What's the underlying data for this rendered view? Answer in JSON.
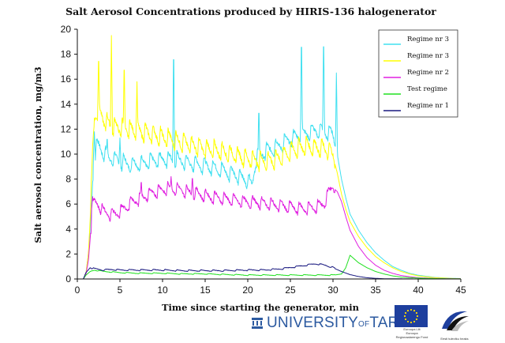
{
  "chart_data": {
    "type": "line",
    "title": "Salt Aerosol Concentrations produced by HIRIS-136 halogenerator",
    "xlabel": "Time since starting the generator, min",
    "ylabel": "Salt aerosol concentration, mg/m3",
    "xlim": [
      0,
      45
    ],
    "ylim": [
      0,
      20
    ],
    "xticks": [
      0,
      5,
      10,
      15,
      20,
      25,
      30,
      35,
      40,
      45
    ],
    "yticks": [
      0,
      2,
      4,
      6,
      8,
      10,
      12,
      14,
      16,
      18,
      20
    ],
    "grid": false,
    "legend_position": "top-right",
    "series": [
      {
        "name": "Regime nr 3",
        "color": "#40e0f0",
        "x": [
          0,
          0.7,
          1.0,
          1.3,
          1.6,
          1.8,
          2.0,
          2.3,
          2.6,
          3.0,
          3.5,
          4,
          5,
          6,
          7,
          8,
          9,
          10,
          11,
          12,
          13,
          14,
          15,
          16,
          17,
          18,
          19,
          20,
          20.5,
          21,
          22,
          23,
          24,
          25,
          26,
          27,
          28,
          29,
          30,
          30.5,
          31,
          31.5,
          32,
          33,
          34,
          35,
          36,
          37,
          38,
          39,
          40,
          42,
          44,
          45
        ],
        "y": [
          0,
          0,
          0.4,
          2.0,
          5.0,
          7.8,
          9.5,
          10.5,
          10.4,
          10.0,
          9.6,
          9.5,
          9.2,
          9.0,
          9.0,
          9.1,
          9.3,
          9.4,
          9.4,
          9.3,
          9.1,
          9.0,
          8.9,
          8.7,
          8.5,
          8.3,
          8.0,
          7.7,
          7.4,
          9.5,
          10.0,
          10.3,
          10.6,
          11.0,
          11.3,
          11.5,
          11.7,
          11.6,
          11.4,
          10.0,
          8.0,
          6.5,
          5.2,
          3.9,
          2.9,
          2.1,
          1.5,
          1.0,
          0.7,
          0.45,
          0.3,
          0.12,
          0.05,
          0.03
        ],
        "spikes": [
          [
            2.0,
            11.8
          ],
          [
            3.5,
            11.5
          ],
          [
            5.0,
            11.3
          ],
          [
            11.3,
            19.2
          ],
          [
            21.3,
            14.0
          ],
          [
            26.3,
            20.0
          ],
          [
            28.9,
            20.0
          ],
          [
            30.4,
            16.5
          ]
        ]
      },
      {
        "name": "Regime nr 3",
        "color": "#ffff00",
        "x": [
          0,
          0.7,
          1.0,
          1.3,
          1.6,
          1.8,
          2.0,
          2.3,
          2.6,
          3.0,
          3.5,
          4,
          5,
          6,
          7,
          8,
          9,
          10,
          11,
          12,
          13,
          14,
          15,
          16,
          17,
          18,
          19,
          20,
          21,
          22,
          23,
          24,
          25,
          26,
          27,
          28,
          29,
          30,
          30.5,
          31,
          31.5,
          32,
          33,
          34,
          35,
          36,
          37,
          38,
          39,
          40,
          42,
          44,
          45
        ],
        "y": [
          0,
          0,
          0.4,
          2.0,
          6.0,
          10.0,
          12.5,
          13.2,
          13.0,
          12.6,
          12.3,
          12.0,
          11.9,
          11.8,
          11.6,
          11.5,
          11.3,
          11.1,
          11.0,
          10.8,
          10.6,
          10.4,
          10.2,
          10.1,
          10.0,
          9.8,
          9.6,
          9.4,
          9.3,
          9.2,
          9.3,
          9.6,
          10.0,
          10.3,
          10.4,
          10.3,
          10.2,
          9.8,
          8.5,
          6.8,
          5.6,
          4.6,
          3.4,
          2.5,
          1.8,
          1.3,
          0.9,
          0.6,
          0.4,
          0.25,
          0.1,
          0.04,
          0.02
        ],
        "spikes": [
          [
            2.5,
            18.3
          ],
          [
            4.0,
            19.5
          ],
          [
            5.5,
            17.7
          ],
          [
            7.0,
            15.8
          ]
        ]
      },
      {
        "name": "Regime nr 2",
        "color": "#e020e0",
        "x": [
          0,
          0.7,
          1.0,
          1.3,
          1.6,
          1.8,
          2.0,
          2.5,
          3.0,
          4,
          5,
          6,
          7,
          8,
          9,
          10,
          11,
          12,
          13,
          14,
          15,
          16,
          17,
          18,
          19,
          20,
          21,
          22,
          23,
          24,
          25,
          26,
          27,
          28,
          29,
          29.5,
          30,
          30.5,
          31,
          31.5,
          32,
          33,
          34,
          35,
          36,
          37,
          38,
          39,
          40,
          42,
          44,
          45
        ],
        "y": [
          0,
          0,
          0.3,
          1.5,
          4.0,
          5.6,
          6.0,
          5.8,
          5.3,
          5.0,
          5.2,
          5.8,
          6.2,
          6.5,
          6.8,
          7.0,
          7.1,
          7.0,
          6.8,
          6.7,
          6.5,
          6.4,
          6.3,
          6.2,
          6.1,
          6.0,
          6.0,
          5.9,
          5.8,
          5.7,
          5.6,
          5.5,
          5.5,
          5.6,
          5.9,
          6.8,
          7.3,
          7.0,
          6.2,
          5.0,
          3.9,
          2.6,
          1.7,
          1.1,
          0.7,
          0.45,
          0.28,
          0.18,
          0.1,
          0.04,
          0.02,
          0.01
        ],
        "spikes": [
          [
            1.8,
            6.6
          ],
          [
            7.5,
            8.0
          ],
          [
            11.0,
            8.2
          ],
          [
            13.5,
            8.3
          ]
        ]
      },
      {
        "name": "Test regime",
        "color": "#20e020",
        "x": [
          0,
          0.7,
          1.0,
          1.5,
          2.0,
          3,
          5,
          7,
          10,
          12,
          15,
          17,
          20,
          22,
          25,
          28,
          30,
          31,
          31.5,
          32,
          32.5,
          33,
          34,
          35,
          36,
          37,
          38,
          40,
          42,
          45
        ],
        "y": [
          0,
          0,
          0.3,
          0.6,
          0.7,
          0.6,
          0.5,
          0.45,
          0.45,
          0.4,
          0.4,
          0.35,
          0.3,
          0.3,
          0.3,
          0.3,
          0.3,
          0.4,
          0.9,
          1.9,
          1.6,
          1.3,
          0.9,
          0.6,
          0.4,
          0.25,
          0.15,
          0.07,
          0.03,
          0.01
        ],
        "spikes": []
      },
      {
        "name": "Regime nr 1",
        "color": "#1a1a80",
        "x": [
          0,
          0.7,
          1.0,
          1.5,
          2.0,
          3,
          4,
          5,
          7,
          10,
          12,
          15,
          17,
          20,
          22,
          24,
          25,
          26,
          27,
          28,
          29,
          30,
          31,
          32,
          33,
          34,
          35,
          36,
          38,
          40,
          45
        ],
        "y": [
          0,
          0,
          0.5,
          0.9,
          0.8,
          0.7,
          0.75,
          0.7,
          0.7,
          0.7,
          0.65,
          0.65,
          0.65,
          0.7,
          0.7,
          0.8,
          0.9,
          1.0,
          1.1,
          1.2,
          1.1,
          0.9,
          0.6,
          0.35,
          0.2,
          0.1,
          0.05,
          0.02,
          0.01,
          0.0,
          0.0
        ],
        "spikes": []
      }
    ]
  },
  "footer": {
    "university_text": "UNIVERSITY",
    "university_of": "OF",
    "university_city": "TARTU",
    "eu_caption_1": "Euroopa Liit",
    "eu_caption_2": "Euroopa",
    "eu_caption_3": "Regionaalarengu Fond",
    "ee_caption": "Eesti tuleviku heaks",
    "colors": {
      "ut_blue": "#2c5aa0",
      "eu_blue": "#1e3f9e",
      "eu_star": "#ffdd00"
    }
  }
}
